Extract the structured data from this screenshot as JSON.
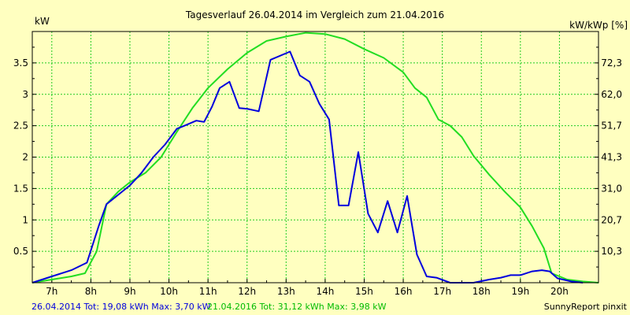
{
  "chart_data": {
    "type": "line",
    "title": "Tagesverlauf 26.04.2014 im Vergleich zum 21.04.2016",
    "ylabel_left": "kW",
    "ylabel_right": "kW/kWp [%]",
    "x_unit": "hours",
    "xlim": [
      6.5,
      21.0
    ],
    "ylim": [
      0,
      4.0
    ],
    "x_tick_labels": [
      "7h",
      "8h",
      "9h",
      "10h",
      "11h",
      "12h",
      "13h",
      "14h",
      "15h",
      "16h",
      "17h",
      "18h",
      "19h",
      "20h"
    ],
    "x_tick_values": [
      7,
      8,
      9,
      10,
      11,
      12,
      13,
      14,
      15,
      16,
      17,
      18,
      19,
      20
    ],
    "y_tick_values": [
      0.5,
      1,
      1.5,
      2,
      2.5,
      3,
      3.5
    ],
    "y_tick_labels": [
      "0.5",
      "1",
      "1.5",
      "2",
      "2.5",
      "3",
      "3.5"
    ],
    "right_tick_values": [
      0.5,
      1,
      1.5,
      2,
      2.5,
      3,
      3.5
    ],
    "right_tick_labels": [
      "10,3",
      "20,7",
      "31,0",
      "41,3",
      "51,7",
      "62,0",
      "72,3"
    ],
    "grid": true,
    "series": [
      {
        "name": "26.04.2014",
        "color": "#0000dd",
        "points": [
          [
            6.5,
            0.0
          ],
          [
            7.0,
            0.1
          ],
          [
            7.5,
            0.2
          ],
          [
            7.9,
            0.32
          ],
          [
            8.2,
            0.9
          ],
          [
            8.4,
            1.25
          ],
          [
            8.7,
            1.4
          ],
          [
            9.0,
            1.55
          ],
          [
            9.3,
            1.75
          ],
          [
            9.6,
            2.0
          ],
          [
            9.9,
            2.2
          ],
          [
            10.2,
            2.45
          ],
          [
            10.4,
            2.5
          ],
          [
            10.7,
            2.58
          ],
          [
            10.9,
            2.56
          ],
          [
            11.1,
            2.8
          ],
          [
            11.3,
            3.1
          ],
          [
            11.55,
            3.2
          ],
          [
            11.8,
            2.78
          ],
          [
            12.0,
            2.77
          ],
          [
            12.3,
            2.73
          ],
          [
            12.6,
            3.55
          ],
          [
            13.1,
            3.68
          ],
          [
            13.35,
            3.3
          ],
          [
            13.6,
            3.2
          ],
          [
            13.85,
            2.85
          ],
          [
            14.1,
            2.6
          ],
          [
            14.35,
            1.23
          ],
          [
            14.6,
            1.23
          ],
          [
            14.85,
            2.08
          ],
          [
            15.1,
            1.1
          ],
          [
            15.35,
            0.8
          ],
          [
            15.6,
            1.3
          ],
          [
            15.85,
            0.8
          ],
          [
            16.1,
            1.38
          ],
          [
            16.35,
            0.45
          ],
          [
            16.6,
            0.1
          ],
          [
            16.85,
            0.08
          ],
          [
            17.2,
            0.0
          ],
          [
            17.8,
            0.0
          ],
          [
            18.2,
            0.05
          ],
          [
            18.5,
            0.08
          ],
          [
            18.75,
            0.12
          ],
          [
            19.0,
            0.12
          ],
          [
            19.3,
            0.18
          ],
          [
            19.55,
            0.2
          ],
          [
            19.75,
            0.18
          ],
          [
            19.95,
            0.07
          ],
          [
            20.3,
            0.02
          ],
          [
            20.6,
            0.0
          ]
        ]
      },
      {
        "name": "21.04.2016",
        "color": "#22dd22",
        "points": [
          [
            6.5,
            0.0
          ],
          [
            7.0,
            0.05
          ],
          [
            7.5,
            0.1
          ],
          [
            7.85,
            0.15
          ],
          [
            8.15,
            0.5
          ],
          [
            8.4,
            1.25
          ],
          [
            8.7,
            1.45
          ],
          [
            9.0,
            1.6
          ],
          [
            9.4,
            1.75
          ],
          [
            9.8,
            2.0
          ],
          [
            10.2,
            2.4
          ],
          [
            10.6,
            2.78
          ],
          [
            11.0,
            3.1
          ],
          [
            11.5,
            3.4
          ],
          [
            12.0,
            3.66
          ],
          [
            12.5,
            3.85
          ],
          [
            13.0,
            3.92
          ],
          [
            13.5,
            3.98
          ],
          [
            14.0,
            3.96
          ],
          [
            14.5,
            3.88
          ],
          [
            15.0,
            3.72
          ],
          [
            15.5,
            3.58
          ],
          [
            16.0,
            3.35
          ],
          [
            16.3,
            3.1
          ],
          [
            16.6,
            2.95
          ],
          [
            16.9,
            2.6
          ],
          [
            17.2,
            2.5
          ],
          [
            17.5,
            2.32
          ],
          [
            17.8,
            2.02
          ],
          [
            18.2,
            1.72
          ],
          [
            18.6,
            1.45
          ],
          [
            19.0,
            1.2
          ],
          [
            19.3,
            0.9
          ],
          [
            19.6,
            0.55
          ],
          [
            19.8,
            0.15
          ],
          [
            20.2,
            0.05
          ],
          [
            20.6,
            0.02
          ],
          [
            21.0,
            0.0
          ]
        ]
      }
    ]
  },
  "footer": {
    "series1_text": "26.04.2014 Tot: 19,08 kWh Max: 3,70 kW",
    "series2_text": "21.04.2016 Tot: 31,12 kWh Max: 3,98 kW",
    "brand": "SunnyReport pinxit",
    "series1_color": "#0000dd",
    "series2_color": "#00bb00"
  }
}
